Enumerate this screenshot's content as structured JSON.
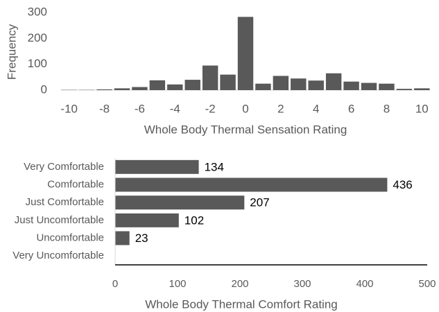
{
  "chart_data": [
    {
      "type": "bar",
      "x_label": "Whole Body Thermal Sensation Rating",
      "y_label": "Frequency",
      "x": [
        -10,
        -9,
        -8,
        -7,
        -6,
        -5,
        -4,
        -3,
        -2,
        -1,
        0,
        1,
        2,
        3,
        4,
        5,
        6,
        7,
        8,
        9,
        10
      ],
      "values": [
        1,
        1,
        3,
        7,
        12,
        38,
        22,
        40,
        95,
        60,
        283,
        25,
        55,
        45,
        37,
        65,
        33,
        28,
        25,
        5,
        7
      ],
      "color": "#595959",
      "xlim": [
        -10.5,
        10.5
      ],
      "xticks": [
        -10,
        -8,
        -6,
        -4,
        -2,
        0,
        2,
        4,
        6,
        8,
        10
      ],
      "ylim": [
        0,
        300
      ],
      "yticks": [
        0,
        100,
        200,
        300
      ],
      "grid": false
    },
    {
      "type": "hbar",
      "x_label": "Whole Body Thermal Comfort Rating",
      "categories": [
        "Very Comfortable",
        "Comfortable",
        "Just Comfortable",
        "Just Uncomfortable",
        "Uncomfortable",
        "Very Uncomfortable"
      ],
      "values": [
        134,
        436,
        207,
        102,
        23,
        null
      ],
      "color": "#595959",
      "xlim": [
        0,
        500
      ],
      "xticks": [
        0,
        100,
        200,
        300,
        400,
        500
      ],
      "grid": false
    }
  ]
}
